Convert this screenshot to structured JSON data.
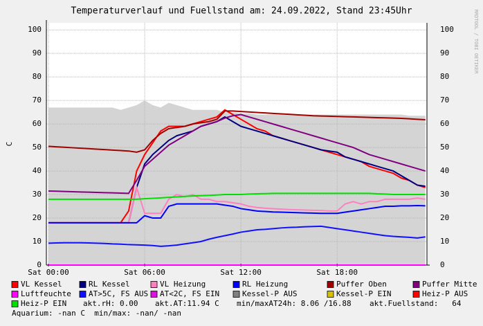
{
  "chart_data": {
    "type": "line",
    "title": "Temperaturverlauf und Fuellstand am: 24.09.2022, Stand 23:45Uhr",
    "y_label": "C",
    "watermark": "RRDTOOL / TOBI OETIKER",
    "xlim": [
      -0.13,
      23.6
    ],
    "xticks": [
      {
        "value": 0,
        "label": "Sat 00:00"
      },
      {
        "value": 6,
        "label": "Sat 06:00"
      },
      {
        "value": 12,
        "label": "Sat 12:00"
      },
      {
        "value": 18,
        "label": "Sat 18:00"
      }
    ],
    "ylim": [
      0,
      103
    ],
    "yticks": [
      0,
      10,
      20,
      30,
      40,
      50,
      60,
      70,
      80,
      90,
      100
    ],
    "grid": true,
    "x": [
      0,
      0.5,
      1,
      1.5,
      2,
      2.5,
      3,
      3.5,
      4,
      4.5,
      5,
      5.5,
      6,
      6.5,
      7,
      7.5,
      8,
      8.5,
      9,
      9.5,
      10,
      10.5,
      11,
      11.5,
      12,
      12.5,
      13,
      13.5,
      14,
      14.5,
      15,
      15.5,
      16,
      16.5,
      17,
      17.5,
      18,
      18.5,
      19,
      19.5,
      20,
      20.5,
      21,
      21.5,
      22,
      22.5,
      23,
      23.5
    ],
    "series": [
      {
        "name": "Kessel-P AUS",
        "color": "#808080",
        "style": "area",
        "values": [
          67,
          67,
          67,
          67,
          67,
          67,
          67,
          67,
          67,
          66,
          67,
          68,
          70,
          68,
          67,
          69,
          68,
          67,
          66,
          66,
          66,
          66,
          65,
          65,
          64.5,
          64.5,
          64,
          64,
          64,
          64,
          64,
          64,
          64,
          64,
          64,
          64,
          64,
          64,
          64,
          64,
          64,
          64,
          64,
          64,
          64,
          63.5,
          63.5,
          63.5
        ]
      },
      {
        "name": "VL Kessel",
        "color": "#ff0000",
        "values": [
          18,
          18,
          18,
          18,
          18,
          18,
          18,
          18,
          18,
          18,
          23,
          40,
          47,
          52,
          57,
          59,
          59,
          59,
          60,
          61,
          62,
          63,
          66,
          64,
          62,
          60,
          58,
          57,
          55,
          54,
          53,
          52,
          51,
          50,
          49,
          48,
          47,
          46,
          45,
          44,
          42,
          41,
          40,
          39,
          37,
          36,
          34,
          33
        ]
      },
      {
        "name": "RL Kessel",
        "color": "#000080",
        "values": [
          18,
          18,
          18,
          18,
          18,
          18,
          18,
          18,
          18,
          18,
          18,
          33,
          43,
          47,
          50,
          53,
          55,
          56,
          57,
          59,
          60,
          61,
          63,
          61,
          59,
          58,
          57,
          56,
          55,
          54,
          53,
          52,
          51,
          50,
          49,
          48.5,
          48,
          46,
          45,
          44,
          43,
          42,
          41,
          40,
          38,
          36,
          34,
          33.5
        ]
      },
      {
        "name": "VL Heizung",
        "color": "#ff80c0",
        "values": [
          18,
          18,
          18,
          18,
          18,
          18,
          18,
          18,
          18,
          18,
          18,
          33,
          22,
          22,
          22,
          28,
          30,
          29,
          30,
          28,
          28,
          27,
          27,
          26.5,
          26,
          25,
          24.5,
          24.2,
          24,
          23.8,
          23.6,
          23.5,
          23.4,
          23.3,
          23.2,
          23,
          23,
          26,
          27,
          26,
          27,
          27,
          28,
          28,
          28,
          28,
          28.5,
          28
        ]
      },
      {
        "name": "RL Heizung",
        "color": "#0000ff",
        "values": [
          18,
          18,
          18,
          18,
          18,
          18,
          18,
          18,
          18,
          18,
          18,
          18,
          21,
          20,
          20,
          25,
          26,
          26,
          26,
          26,
          26,
          26,
          25.5,
          25,
          24,
          23.5,
          23,
          22.8,
          22.6,
          22.5,
          22.4,
          22.3,
          22.2,
          22.1,
          22,
          22,
          22,
          22.5,
          23,
          23.5,
          24,
          24.5,
          25,
          25,
          25.2,
          25.2,
          25.3,
          25.2
        ]
      },
      {
        "name": "Puffer Oben",
        "color": "#a00000",
        "values": [
          50.5,
          50.3,
          50.1,
          49.9,
          49.7,
          49.5,
          49.3,
          49.1,
          48.9,
          48.7,
          48.5,
          48,
          49,
          53,
          56,
          58,
          58.5,
          59,
          60,
          60.5,
          61,
          62,
          65.5,
          65.5,
          65.3,
          65.1,
          64.9,
          64.7,
          64.5,
          64.3,
          64.1,
          63.9,
          63.7,
          63.5,
          63.4,
          63.3,
          63.2,
          63.1,
          63,
          62.9,
          62.8,
          62.7,
          62.6,
          62.5,
          62.4,
          62.2,
          62,
          61.8
        ]
      },
      {
        "name": "Puffer Mitte",
        "color": "#800080",
        "values": [
          31.5,
          31.4,
          31.3,
          31.2,
          31.1,
          31,
          30.9,
          30.8,
          30.7,
          30.6,
          30.5,
          36,
          42,
          45,
          48,
          51,
          53,
          55,
          57,
          59,
          60,
          61,
          62.5,
          63.5,
          64,
          63,
          62,
          61,
          60,
          59,
          58,
          57,
          56,
          55,
          54,
          53,
          52,
          51,
          50,
          48.5,
          47,
          46,
          45,
          44,
          43,
          42,
          41,
          40
        ]
      },
      {
        "name": "Luftfeuchte",
        "color": "#ff00ff",
        "values": [
          0,
          0,
          0,
          0,
          0,
          0,
          0,
          0,
          0,
          0,
          0,
          0,
          0,
          0,
          0,
          0,
          0,
          0,
          0,
          0,
          0,
          0,
          0,
          0,
          0,
          0,
          0,
          0,
          0,
          0,
          0,
          0,
          0,
          0,
          0,
          0,
          0,
          0,
          0,
          0,
          0,
          0,
          0,
          0,
          0,
          0,
          0,
          0
        ]
      },
      {
        "name": "AT>5C, FS AUS",
        "color": "#1010ff",
        "values": [
          9.3,
          9.4,
          9.5,
          9.5,
          9.5,
          9.4,
          9.3,
          9.2,
          9,
          8.9,
          8.7,
          8.6,
          8.5,
          8.3,
          8,
          8.2,
          8.5,
          9,
          9.5,
          10,
          11,
          11.8,
          12.5,
          13.2,
          14,
          14.5,
          15,
          15.2,
          15.5,
          15.8,
          16,
          16.1,
          16.3,
          16.4,
          16.5,
          16,
          15.5,
          15,
          14.5,
          14,
          13.5,
          13,
          12.5,
          12.2,
          12,
          11.8,
          11.5,
          12
        ]
      },
      {
        "name": "Heiz-P EIN",
        "color": "#00e000",
        "values": [
          28,
          28,
          28,
          28,
          28,
          28,
          28,
          28,
          28,
          28,
          28,
          28,
          28.2,
          28.4,
          28.6,
          28.8,
          29,
          29.2,
          29.4,
          29.5,
          29.6,
          29.8,
          30,
          30,
          30,
          30.2,
          30.3,
          30.4,
          30.5,
          30.5,
          30.5,
          30.5,
          30.5,
          30.5,
          30.5,
          30.5,
          30.5,
          30.5,
          30.5,
          30.5,
          30.5,
          30.3,
          30.2,
          30,
          30,
          30,
          30,
          30
        ]
      }
    ],
    "legend": [
      {
        "name": "VL Kessel",
        "color": "#ff0000"
      },
      {
        "name": "RL Kessel",
        "color": "#000080"
      },
      {
        "name": "VL Heizung",
        "color": "#ff80c0"
      },
      {
        "name": "RL Heizung",
        "color": "#0000ff"
      },
      {
        "name": "Puffer Oben",
        "color": "#a00000"
      },
      {
        "name": "Puffer Mitte",
        "color": "#800080"
      },
      {
        "name": "Luftfeuchte",
        "color": "#ff00ff"
      },
      {
        "name": "AT>5C, FS AUS",
        "color": "#1010ff"
      },
      {
        "name": "AT<2C, FS EIN",
        "color": "#e010e0"
      },
      {
        "name": "Kessel-P AUS",
        "color": "#808080"
      },
      {
        "name": "Kessel-P EIN",
        "color": "#d4c000"
      },
      {
        "name": "Heiz-P AUS",
        "color": "#ff0000"
      },
      {
        "name": "Heiz-P EIN",
        "color": "#00e000"
      }
    ],
    "footer": [
      "akt.rH: 0.00",
      "akt.AT:11.94 C",
      "min/maxAT24h: 8.06 /16.88",
      "akt.Fuellstand:   64",
      "Aquarium: -nan C  min/max: -nan/ -nan"
    ]
  }
}
